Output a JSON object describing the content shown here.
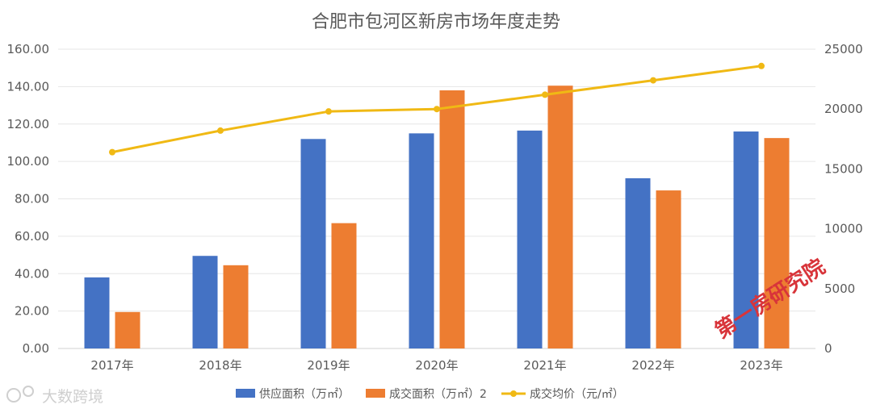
{
  "chart_data": {
    "type": "bar",
    "title": "合肥市包河区新房市场年度走势",
    "categories": [
      "2017年",
      "2018年",
      "2019年",
      "2020年",
      "2021年",
      "2022年",
      "2023年"
    ],
    "series": [
      {
        "name": "供应面积（万㎡）",
        "type": "bar",
        "axis": "left",
        "color": "#4472c4",
        "values": [
          38.0,
          49.5,
          112.0,
          115.0,
          116.5,
          91.0,
          116.0
        ]
      },
      {
        "name": "成交面积（万㎡）2",
        "type": "bar",
        "axis": "left",
        "color": "#ed7d31",
        "values": [
          19.5,
          44.5,
          67.0,
          138.0,
          140.5,
          84.5,
          112.5
        ]
      },
      {
        "name": "成交均价（元/㎡）",
        "type": "line",
        "axis": "right",
        "color": "#f0b914",
        "values": [
          16400,
          18200,
          19800,
          20000,
          21200,
          22400,
          23600
        ]
      }
    ],
    "y_left": {
      "min": 0,
      "max": 160,
      "step": 20,
      "tick_labels": [
        "0.00",
        "20.00",
        "40.00",
        "60.00",
        "80.00",
        "100.00",
        "120.00",
        "140.00",
        "160.00"
      ]
    },
    "y_right": {
      "min": 0,
      "max": 25000,
      "step": 5000,
      "tick_labels": [
        "0",
        "5000",
        "10000",
        "15000",
        "20000",
        "25000"
      ]
    },
    "grid": true,
    "legend_position": "bottom"
  },
  "stamp_text": "第一房研究院",
  "watermark_text": "大数跨境"
}
